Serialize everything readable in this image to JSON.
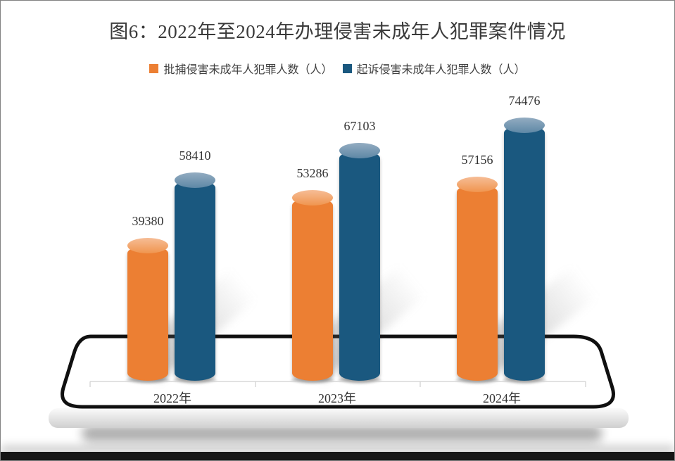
{
  "chart_data": {
    "type": "bar",
    "subtype": "3d-cylinder-columns-on-stage",
    "title": "图6：2022年至2024年办理侵害未成年人犯罪案件情况",
    "categories": [
      "2022年",
      "2023年",
      "2024年"
    ],
    "series": [
      {
        "name": "批捕侵害未成年人犯罪人数（人）",
        "color": "#EC7F33",
        "cap_color_top": "#F6BD96",
        "cap_color_bottom": "#F0954F",
        "values": [
          39380,
          53286,
          57156
        ]
      },
      {
        "name": "起诉侵害未成年人犯罪人数（人）",
        "color": "#1A587F",
        "cap_color_top": "#93ACC1",
        "cap_color_bottom": "#5E88A6",
        "values": [
          58410,
          67103,
          74476
        ]
      }
    ],
    "legend_position": "top",
    "value_labels_shown": true,
    "gridlines": "off",
    "axis": {
      "baseline_color": "#D8D8D8",
      "text_color": "#333333"
    }
  }
}
